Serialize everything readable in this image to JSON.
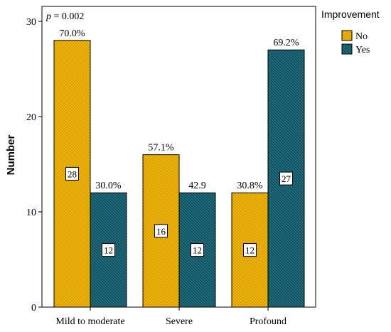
{
  "chart_data": {
    "type": "bar",
    "categories": [
      "Mild to moderate",
      "Severe",
      "Profound"
    ],
    "series": [
      {
        "name": "No",
        "color": "#f2b705",
        "values": [
          28,
          16,
          12
        ],
        "count_labels": [
          "28",
          "16",
          "12"
        ],
        "percent_labels": [
          "70.0%",
          "57.1%",
          "30.8%"
        ]
      },
      {
        "name": "Yes",
        "color": "#1f6f80",
        "values": [
          12,
          12,
          27
        ],
        "count_labels": [
          "12",
          "12",
          "27"
        ],
        "percent_labels": [
          "30.0%",
          "42.9",
          "69.2%"
        ]
      }
    ],
    "ylabel": "Number",
    "xlabel": "",
    "ylim": [
      0,
      30
    ],
    "yticks": [
      0,
      10,
      20,
      30
    ],
    "annotation": {
      "italic": "p",
      "text": "= 0.002"
    },
    "legend": {
      "title": "Improvement",
      "position": "right"
    },
    "grid": false
  }
}
